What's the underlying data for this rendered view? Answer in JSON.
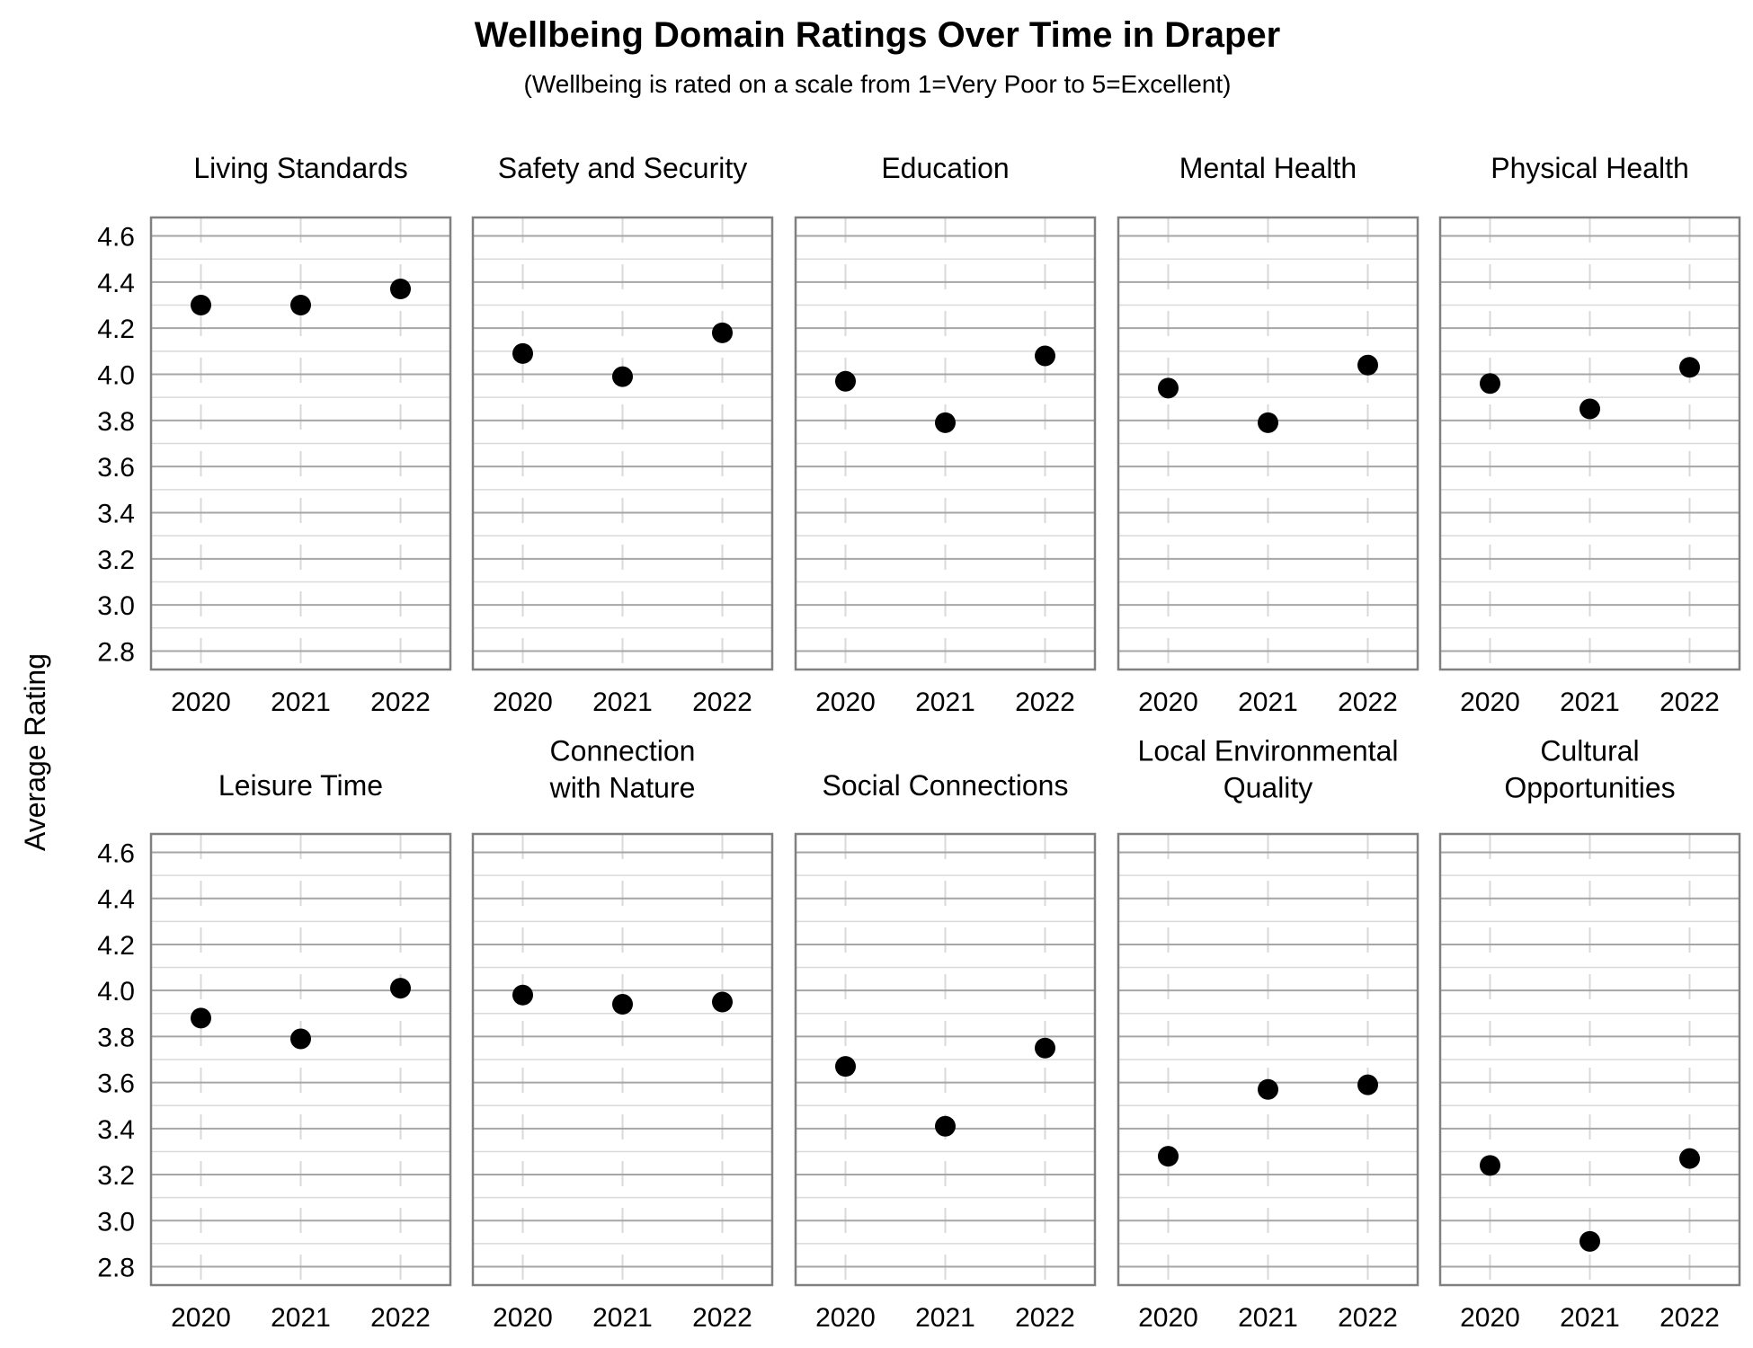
{
  "chart_data": {
    "type": "scatter",
    "title": "Wellbeing Domain Ratings Over Time in Draper",
    "subtitle": "(Wellbeing is rated on a scale from 1=Very Poor to 5=Excellent)",
    "ylabel": "Average Rating",
    "x": [
      "2020",
      "2021",
      "2022"
    ],
    "ylim": [
      2.72,
      4.68
    ],
    "yticks": [
      "2.8",
      "3.0",
      "3.2",
      "3.4",
      "3.6",
      "3.8",
      "4.0",
      "4.2",
      "4.4",
      "4.6"
    ],
    "grid": true,
    "facets": [
      {
        "title": [
          "Living Standards"
        ],
        "values": [
          4.3,
          4.3,
          4.37
        ]
      },
      {
        "title": [
          "Safety and Security"
        ],
        "values": [
          4.09,
          3.99,
          4.18
        ]
      },
      {
        "title": [
          "Education"
        ],
        "values": [
          3.97,
          3.79,
          4.08
        ]
      },
      {
        "title": [
          "Mental Health"
        ],
        "values": [
          3.94,
          3.79,
          4.04
        ]
      },
      {
        "title": [
          "Physical Health"
        ],
        "values": [
          3.96,
          3.85,
          4.03
        ]
      },
      {
        "title": [
          "Leisure Time"
        ],
        "values": [
          3.88,
          3.79,
          4.01
        ]
      },
      {
        "title": [
          "Connection",
          "with Nature"
        ],
        "values": [
          3.98,
          3.94,
          3.95
        ]
      },
      {
        "title": [
          "Social Connections"
        ],
        "values": [
          3.67,
          3.41,
          3.75
        ]
      },
      {
        "title": [
          "Local Environmental",
          "Quality"
        ],
        "values": [
          3.28,
          3.57,
          3.59
        ]
      },
      {
        "title": [
          "Cultural",
          "Opportunities"
        ],
        "values": [
          3.24,
          2.91,
          3.27
        ]
      }
    ]
  },
  "colors": {
    "point": "#000000",
    "frame": "#808080",
    "grid_major": "#a6a6a6",
    "grid_minor": "#d9d9d9"
  }
}
